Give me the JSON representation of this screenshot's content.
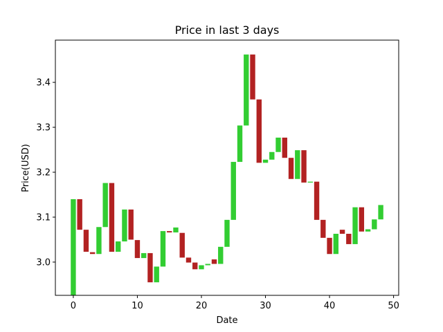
{
  "chart_data": {
    "type": "bar",
    "title": "Price in last 3 days",
    "xlabel": "Date",
    "ylabel": "Price(USD)",
    "xlim": [
      -2.8,
      50.8
    ],
    "ylim": [
      2.926,
      3.494
    ],
    "xticks": [
      0,
      10,
      20,
      30,
      40,
      50
    ],
    "yticks": [
      3.0,
      3.1,
      3.2,
      3.3,
      3.4
    ],
    "grid": false,
    "colors": {
      "up": "#32cd32",
      "down": "#b22222"
    },
    "bars": [
      {
        "x": 0,
        "bottom": 2.926,
        "top": 3.14,
        "dir": "up"
      },
      {
        "x": 1,
        "bottom": 3.072,
        "top": 3.14,
        "dir": "down"
      },
      {
        "x": 2,
        "bottom": 3.023,
        "top": 3.072,
        "dir": "down"
      },
      {
        "x": 3,
        "bottom": 3.018,
        "top": 3.022,
        "dir": "down"
      },
      {
        "x": 4,
        "bottom": 3.018,
        "top": 3.078,
        "dir": "up"
      },
      {
        "x": 5,
        "bottom": 3.078,
        "top": 3.176,
        "dir": "up"
      },
      {
        "x": 6,
        "bottom": 3.023,
        "top": 3.176,
        "dir": "down"
      },
      {
        "x": 7,
        "bottom": 3.023,
        "top": 3.046,
        "dir": "up"
      },
      {
        "x": 8,
        "bottom": 3.046,
        "top": 3.117,
        "dir": "up"
      },
      {
        "x": 9,
        "bottom": 3.05,
        "top": 3.117,
        "dir": "down"
      },
      {
        "x": 10,
        "bottom": 3.009,
        "top": 3.049,
        "dir": "down"
      },
      {
        "x": 11,
        "bottom": 3.009,
        "top": 3.02,
        "dir": "up"
      },
      {
        "x": 12,
        "bottom": 2.955,
        "top": 3.02,
        "dir": "down"
      },
      {
        "x": 13,
        "bottom": 2.955,
        "top": 2.99,
        "dir": "up"
      },
      {
        "x": 14,
        "bottom": 2.99,
        "top": 3.069,
        "dir": "up"
      },
      {
        "x": 15,
        "bottom": 3.066,
        "top": 3.069,
        "dir": "down"
      },
      {
        "x": 16,
        "bottom": 3.066,
        "top": 3.077,
        "dir": "up"
      },
      {
        "x": 17,
        "bottom": 3.01,
        "top": 3.065,
        "dir": "down"
      },
      {
        "x": 18,
        "bottom": 2.999,
        "top": 3.01,
        "dir": "down"
      },
      {
        "x": 19,
        "bottom": 2.984,
        "top": 2.999,
        "dir": "down"
      },
      {
        "x": 20,
        "bottom": 2.984,
        "top": 2.993,
        "dir": "up"
      },
      {
        "x": 21,
        "bottom": 2.993,
        "top": 2.996,
        "dir": "up"
      },
      {
        "x": 22,
        "bottom": 2.996,
        "top": 3.006,
        "dir": "down"
      },
      {
        "x": 23,
        "bottom": 2.996,
        "top": 3.034,
        "dir": "up"
      },
      {
        "x": 24,
        "bottom": 3.034,
        "top": 3.094,
        "dir": "up"
      },
      {
        "x": 25,
        "bottom": 3.094,
        "top": 3.223,
        "dir": "up"
      },
      {
        "x": 26,
        "bottom": 3.223,
        "top": 3.304,
        "dir": "up"
      },
      {
        "x": 27,
        "bottom": 3.304,
        "top": 3.462,
        "dir": "up"
      },
      {
        "x": 28,
        "bottom": 3.362,
        "top": 3.462,
        "dir": "down"
      },
      {
        "x": 29,
        "bottom": 3.221,
        "top": 3.362,
        "dir": "down"
      },
      {
        "x": 30,
        "bottom": 3.221,
        "top": 3.228,
        "dir": "up"
      },
      {
        "x": 31,
        "bottom": 3.228,
        "top": 3.245,
        "dir": "up"
      },
      {
        "x": 32,
        "bottom": 3.245,
        "top": 3.277,
        "dir": "up"
      },
      {
        "x": 33,
        "bottom": 3.232,
        "top": 3.277,
        "dir": "down"
      },
      {
        "x": 34,
        "bottom": 3.185,
        "top": 3.232,
        "dir": "down"
      },
      {
        "x": 35,
        "bottom": 3.185,
        "top": 3.249,
        "dir": "up"
      },
      {
        "x": 36,
        "bottom": 3.177,
        "top": 3.249,
        "dir": "down"
      },
      {
        "x": 37,
        "bottom": 3.177,
        "top": 3.179,
        "dir": "up"
      },
      {
        "x": 38,
        "bottom": 3.094,
        "top": 3.179,
        "dir": "down"
      },
      {
        "x": 39,
        "bottom": 3.054,
        "top": 3.094,
        "dir": "down"
      },
      {
        "x": 40,
        "bottom": 3.018,
        "top": 3.054,
        "dir": "down"
      },
      {
        "x": 41,
        "bottom": 3.018,
        "top": 3.063,
        "dir": "up"
      },
      {
        "x": 42,
        "bottom": 3.063,
        "top": 3.072,
        "dir": "down"
      },
      {
        "x": 43,
        "bottom": 3.04,
        "top": 3.063,
        "dir": "down"
      },
      {
        "x": 44,
        "bottom": 3.04,
        "top": 3.122,
        "dir": "up"
      },
      {
        "x": 45,
        "bottom": 3.068,
        "top": 3.122,
        "dir": "down"
      },
      {
        "x": 46,
        "bottom": 3.068,
        "top": 3.073,
        "dir": "up"
      },
      {
        "x": 47,
        "bottom": 3.073,
        "top": 3.095,
        "dir": "up"
      },
      {
        "x": 48,
        "bottom": 3.095,
        "top": 3.127,
        "dir": "up"
      }
    ]
  }
}
